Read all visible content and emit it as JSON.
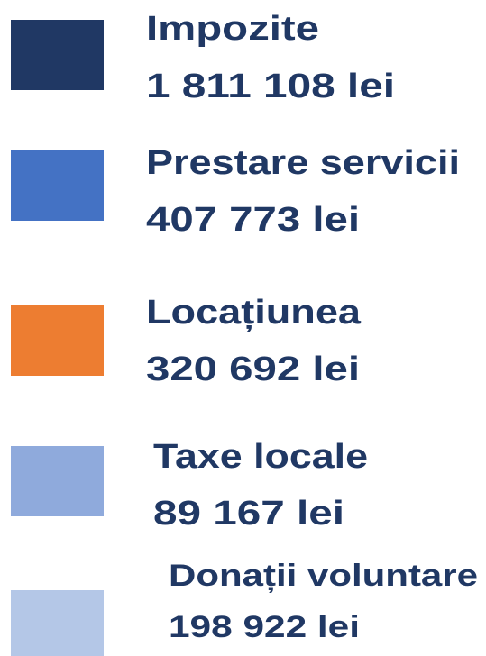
{
  "legend": {
    "items": [
      {
        "label": "Impozite",
        "amount": "1 811 108 lei",
        "color": "#203864"
      },
      {
        "label": "Prestare servicii",
        "amount": "407 773 lei",
        "color": "#4472c4"
      },
      {
        "label": "Locațiunea",
        "amount": "320 692 lei",
        "color": "#ed7d31"
      },
      {
        "label": "Taxe locale",
        "amount": "89 167 lei",
        "color": "#8faadc"
      },
      {
        "label": "Donații voluntare",
        "amount": "198 922 lei",
        "color": "#b4c7e7"
      }
    ]
  }
}
